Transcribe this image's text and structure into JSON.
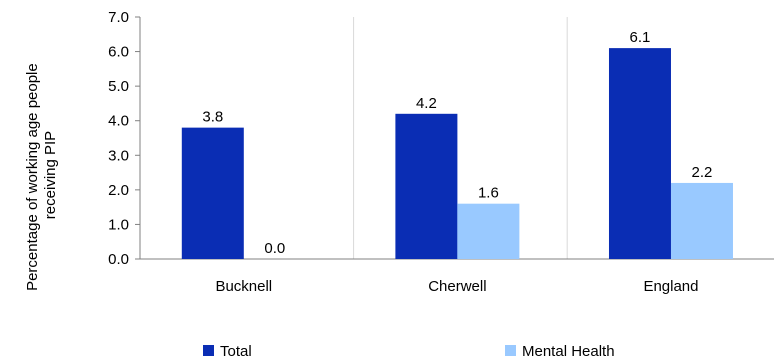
{
  "chart_data": {
    "type": "bar",
    "categories": [
      "Bucknell",
      "Cherwell",
      "England"
    ],
    "series": [
      {
        "name": "Total",
        "values": [
          3.8,
          4.2,
          6.1
        ],
        "labels": [
          "3.8",
          "4.2",
          "6.1"
        ],
        "color": "#0a2db4"
      },
      {
        "name": "Mental Health",
        "values": [
          0.0,
          1.6,
          2.2
        ],
        "labels": [
          "0.0",
          "1.6",
          "2.2"
        ],
        "color": "#99c9ff"
      }
    ],
    "ylabel_lines": [
      "Percentage of working age people",
      "receiving PIP"
    ],
    "ylim": [
      0,
      7
    ],
    "yticks": [
      "0.0",
      "1.0",
      "2.0",
      "3.0",
      "4.0",
      "5.0",
      "6.0",
      "7.0"
    ],
    "grid": "vertical separators between categories",
    "legend": "bottom"
  }
}
